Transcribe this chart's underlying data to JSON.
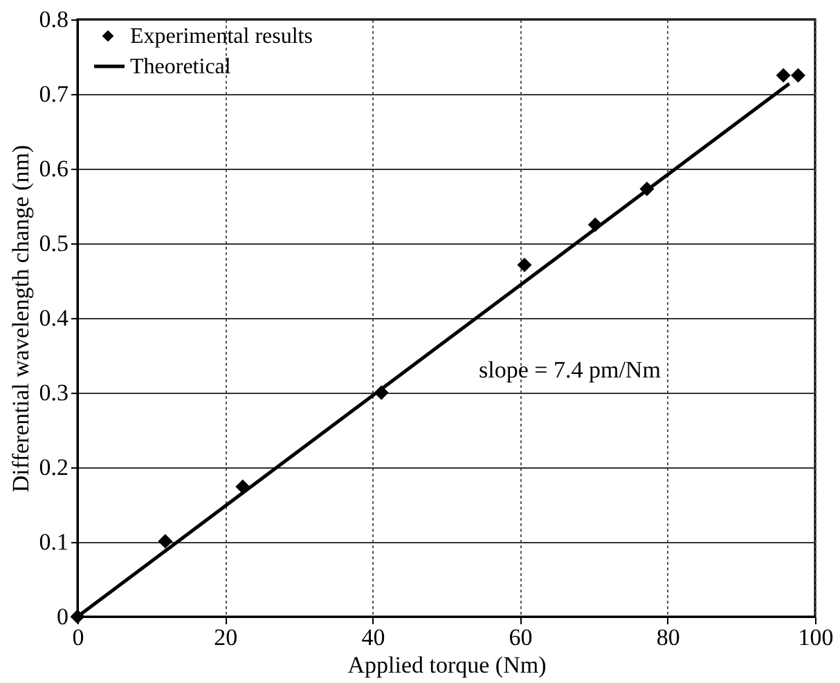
{
  "chart_data": {
    "type": "scatter",
    "xlabel": "Applied torque (Nm)",
    "ylabel": "Differential wavelength change (nm)",
    "xlim": [
      0,
      100
    ],
    "xticks": [
      0,
      20,
      40,
      60,
      80,
      100
    ],
    "ylim": [
      0,
      0.8
    ],
    "yticks": [
      0,
      0.1,
      0.2,
      0.3,
      0.4,
      0.5,
      0.6,
      0.7,
      0.8
    ],
    "grid": true,
    "legend": "top left",
    "series": [
      {
        "name": "Experimental results",
        "marker": "diamond",
        "color": "#000000",
        "x": [
          0,
          11.9,
          22.4,
          41.2,
          60.6,
          70.2,
          77.2,
          95.7,
          97.7
        ],
        "values": [
          0,
          0.101,
          0.174,
          0.3,
          0.471,
          0.525,
          0.573,
          0.725,
          0.725
        ]
      },
      {
        "name": "Theoretical",
        "type": "line",
        "line_style": "solid",
        "color": "#000000",
        "x": [
          0,
          96.5
        ],
        "values": [
          0,
          0.714
        ]
      }
    ],
    "annotations": [
      "slope = 7.4 pm/Nm"
    ]
  }
}
